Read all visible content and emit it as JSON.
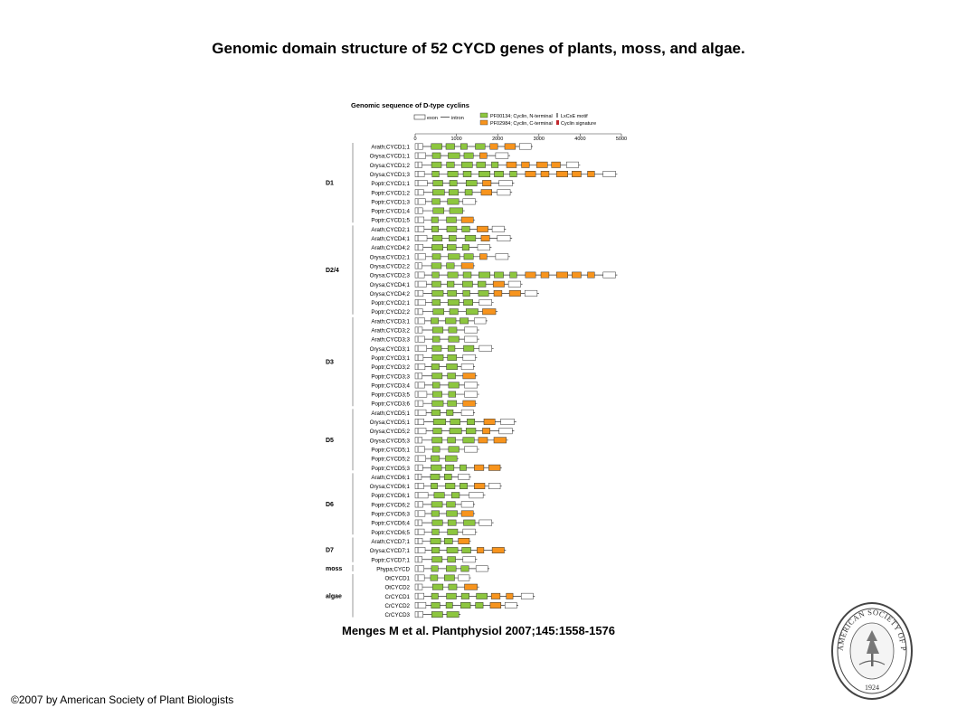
{
  "slide": {
    "title": "Genomic domain structure of 52 CYCD genes of plants, moss, and algae.",
    "citation": "Menges M et al. Plantphysiol 2007;145:1558-1576",
    "copyright": "©2007 by American Society of Plant Biologists"
  },
  "figure": {
    "heading": "Genomic sequence of D-type cyclins",
    "legend": {
      "exon": "exon",
      "intron": "intron",
      "n_terminal": "PF00134; Cyclin, N-terminal",
      "c_terminal": "PF02984; Cyclin, C-terminal",
      "lxcxe": "LxCxE motif",
      "signature": "Cyclin signature"
    },
    "axis_ticks": [
      "0",
      "1000",
      "2000",
      "3000",
      "4000",
      "5000"
    ],
    "colors": {
      "n_terminal": "#8dc63f",
      "c_terminal": "#f7941d",
      "lxcxe": "#8a8a8a",
      "signature": "#c1272d",
      "exon_outline": "#333333"
    },
    "groups": [
      {
        "label": "D1",
        "genes": [
          {
            "name": "Arath;CYCD1;1",
            "len": 2850
          },
          {
            "name": "Orysa;CYCD1;1",
            "len": 2300
          },
          {
            "name": "Orysa;CYCD1;2",
            "len": 4000
          },
          {
            "name": "Orysa;CYCD1;3",
            "len": 4900
          },
          {
            "name": "Poptr;CYCD1;1",
            "len": 2400
          },
          {
            "name": "Poptr;CYCD1;2",
            "len": 2350
          },
          {
            "name": "Poptr;CYCD1;3",
            "len": 1500
          },
          {
            "name": "Poptr;CYCD1;4",
            "len": 1200
          },
          {
            "name": "Poptr;CYCD1;5",
            "len": 1450
          }
        ]
      },
      {
        "label": "D2/4",
        "genes": [
          {
            "name": "Arath;CYCD2;1",
            "len": 2200
          },
          {
            "name": "Arath;CYCD4;1",
            "len": 2350
          },
          {
            "name": "Arath;CYCD4;2",
            "len": 1850
          },
          {
            "name": "Orysa;CYCD2;1",
            "len": 2300
          },
          {
            "name": "Orysa;CYCD2;2",
            "len": 1450
          },
          {
            "name": "Orysa;CYCD2;3",
            "len": 4900
          },
          {
            "name": "Orysa;CYCD4;1",
            "len": 2600
          },
          {
            "name": "Orysa;CYCD4;2",
            "len": 3000
          },
          {
            "name": "Poptr;CYCD2;1",
            "len": 1900
          },
          {
            "name": "Poptr;CYCD2;2",
            "len": 2000
          }
        ]
      },
      {
        "label": "D3",
        "genes": [
          {
            "name": "Arath;CYCD3;1",
            "len": 1750
          },
          {
            "name": "Arath;CYCD3;2",
            "len": 1550
          },
          {
            "name": "Arath;CYCD3;3",
            "len": 1550
          },
          {
            "name": "Orysa;CYCD3;1",
            "len": 1900
          },
          {
            "name": "Poptr;CYCD3;1",
            "len": 1500
          },
          {
            "name": "Poptr;CYCD3;2",
            "len": 1450
          },
          {
            "name": "Poptr;CYCD3;3",
            "len": 1500
          },
          {
            "name": "Poptr;CYCD3;4",
            "len": 1550
          },
          {
            "name": "Poptr;CYCD3;5",
            "len": 1550
          },
          {
            "name": "Poptr;CYCD3;6",
            "len": 1500
          }
        ]
      },
      {
        "label": "D5",
        "genes": [
          {
            "name": "Arath;CYCD5;1",
            "len": 1450
          },
          {
            "name": "Orysa;CYCD5;1",
            "len": 2450
          },
          {
            "name": "Orysa;CYCD5;2",
            "len": 2400
          },
          {
            "name": "Orysa;CYCD5;3",
            "len": 2250
          },
          {
            "name": "Poptr;CYCD5;1",
            "len": 1550
          },
          {
            "name": "Poptr;CYCD5;2",
            "len": 1050
          },
          {
            "name": "Poptr;CYCD5;3",
            "len": 2100
          }
        ]
      },
      {
        "label": "D6",
        "genes": [
          {
            "name": "Arath;CYCD6;1",
            "len": 1350
          },
          {
            "name": "Orysa;CYCD6;1",
            "len": 2100
          },
          {
            "name": "Poptr;CYCD6;1",
            "len": 1700
          },
          {
            "name": "Poptr;CYCD6;2",
            "len": 1450
          },
          {
            "name": "Poptr;CYCD6;3",
            "len": 1450
          },
          {
            "name": "Poptr;CYCD6;4",
            "len": 1900
          },
          {
            "name": "Poptr;CYCD6;5",
            "len": 1500
          }
        ]
      },
      {
        "label": "D7",
        "genes": [
          {
            "name": "Arath;CYCD7;1",
            "len": 1350
          },
          {
            "name": "Orysa;CYCD7;1",
            "len": 2200
          },
          {
            "name": "Poptr;CYCD7;1",
            "len": 1500
          }
        ]
      },
      {
        "label": "moss",
        "genes": [
          {
            "name": "Phypa;CYCD",
            "len": 1800
          }
        ]
      },
      {
        "label": "algae",
        "genes": [
          {
            "name": "OtCYCD1",
            "len": 1350
          },
          {
            "name": "OtCYCD2",
            "len": 1550
          },
          {
            "name": "CrCYCD1",
            "len": 2900
          },
          {
            "name": "CrCYCD2",
            "len": 2500
          },
          {
            "name": "CrCYCD3",
            "len": 1100
          }
        ]
      }
    ]
  },
  "seal": {
    "text": "AMERICAN SOCIETY OF PLANT BIOLOGISTS",
    "year": "1924"
  }
}
